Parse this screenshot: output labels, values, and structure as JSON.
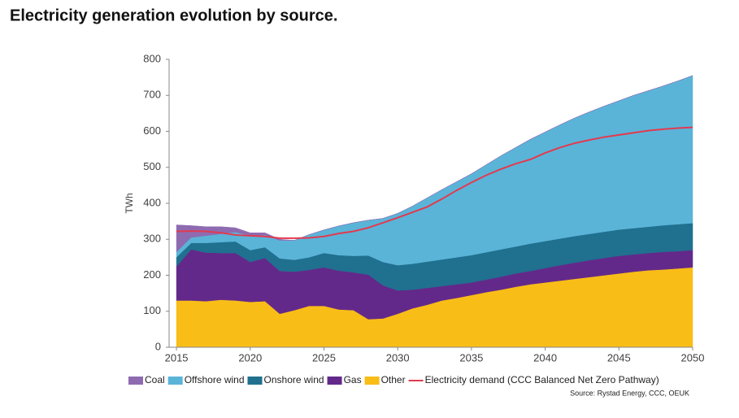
{
  "chart_data": {
    "type": "stacked_area",
    "title": "Electricity generation evolution by source.",
    "ylabel": "TWh",
    "source": "Source: Rystad Energy, CCC, OEUK",
    "x": [
      2015,
      2016,
      2017,
      2018,
      2019,
      2020,
      2021,
      2022,
      2023,
      2024,
      2025,
      2026,
      2027,
      2028,
      2029,
      2030,
      2031,
      2032,
      2033,
      2034,
      2035,
      2036,
      2037,
      2038,
      2039,
      2040,
      2041,
      2042,
      2043,
      2044,
      2045,
      2046,
      2047,
      2048,
      2049,
      2050
    ],
    "xlim": [
      2014.5,
      2050
    ],
    "xticks": [
      2015,
      2020,
      2025,
      2030,
      2035,
      2040,
      2045,
      2050
    ],
    "ylim": [
      0,
      800
    ],
    "yticks": [
      0,
      100,
      200,
      300,
      400,
      500,
      600,
      700,
      800
    ],
    "series": [
      {
        "name": "Coal",
        "color": "#8e6bb0",
        "values": [
          75,
          33,
          25,
          20,
          12,
          8,
          6,
          3,
          0,
          0,
          0,
          0,
          0,
          0,
          0,
          0,
          0,
          0,
          0,
          0,
          0,
          0,
          0,
          0,
          0,
          0,
          0,
          0,
          0,
          0,
          0,
          0,
          0,
          0,
          0,
          0
        ]
      },
      {
        "name": "Offshore wind",
        "color": "#5ab4d8",
        "values": [
          15,
          15,
          20,
          23,
          26,
          40,
          34,
          50,
          54,
          63,
          64,
          81,
          92,
          98,
          121,
          144,
          160,
          177,
          194,
          210,
          226,
          243,
          260,
          275,
          290,
          303,
          316,
          328,
          339,
          349,
          358,
          369,
          378,
          387,
          398,
          410
        ]
      },
      {
        "name": "Onshore wind",
        "color": "#20708f",
        "values": [
          25,
          18,
          27,
          30,
          32,
          33,
          30,
          35,
          33,
          35,
          40,
          43,
          46,
          53,
          65,
          70,
          72,
          73,
          74,
          75,
          76,
          76,
          76,
          75,
          76,
          75,
          74,
          74,
          73,
          73,
          73,
          73,
          73,
          74,
          75,
          75
        ]
      },
      {
        "name": "Gas",
        "color": "#63298a",
        "values": [
          95,
          142,
          135,
          130,
          132,
          111,
          120,
          119,
          107,
          100,
          107,
          108,
          105,
          124,
          92,
          65,
          52,
          47,
          40,
          38,
          35,
          35,
          36,
          37,
          37,
          40,
          43,
          45,
          47,
          48,
          49,
          48,
          48,
          49,
          48,
          48
        ]
      },
      {
        "name": "Other",
        "color": "#f9bd17",
        "values": [
          130,
          130,
          128,
          132,
          130,
          126,
          128,
          93,
          103,
          115,
          115,
          105,
          103,
          78,
          80,
          93,
          108,
          118,
          130,
          137,
          145,
          153,
          160,
          168,
          175,
          180,
          185,
          190,
          195,
          200,
          205,
          210,
          214,
          216,
          219,
          222
        ]
      },
      {
        "name": "Electricity demand (CCC Balanced Net Zero Pathway)",
        "type": "line",
        "color": "#e23a4f",
        "values": [
          322,
          323,
          322,
          318,
          312,
          310,
          308,
          303,
          303,
          304,
          308,
          316,
          322,
          332,
          346,
          360,
          375,
          390,
          412,
          436,
          458,
          478,
          495,
          510,
          522,
          540,
          555,
          567,
          576,
          584,
          590,
          596,
          602,
          606,
          609,
          611
        ]
      }
    ]
  }
}
